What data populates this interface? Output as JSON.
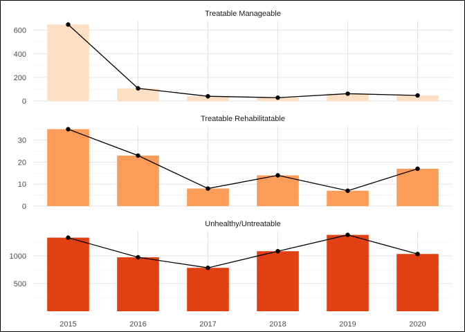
{
  "chart_data": {
    "type": "bar",
    "x": [
      "2015",
      "2016",
      "2017",
      "2018",
      "2019",
      "2020"
    ],
    "panels": [
      {
        "title": "Treatable Manageable",
        "bar_values": [
          648,
          107,
          40,
          28,
          62,
          47
        ],
        "line_values": [
          648,
          107,
          40,
          28,
          62,
          47
        ],
        "ylim": [
          0,
          680
        ],
        "yticks": [
          0,
          200,
          400,
          600
        ],
        "ytick_labels": [
          "0",
          "200",
          "400",
          "600"
        ],
        "bar_color": "#fddfc3"
      },
      {
        "title": "Treatable Rehabilitatable",
        "bar_values": [
          35,
          23,
          8,
          14,
          7,
          17
        ],
        "line_values": [
          35,
          23,
          8,
          14,
          7,
          17
        ],
        "ylim": [
          0,
          36.5
        ],
        "yticks": [
          0,
          10,
          20,
          30
        ],
        "ytick_labels": [
          "0",
          "10",
          "20",
          "30"
        ],
        "bar_color": "#fb9d59"
      },
      {
        "title": "Unhealthy/Untreatable",
        "bar_values": [
          1330,
          975,
          785,
          1085,
          1380,
          1035
        ],
        "line_values": [
          1330,
          975,
          785,
          1085,
          1380,
          1035
        ],
        "ylim": [
          0,
          1450
        ],
        "yticks": [
          500,
          1000
        ],
        "ytick_labels": [
          "500",
          "1000"
        ],
        "bar_color": "#e04012"
      }
    ],
    "line_color": "#000000",
    "grid": true,
    "legend": "none"
  }
}
